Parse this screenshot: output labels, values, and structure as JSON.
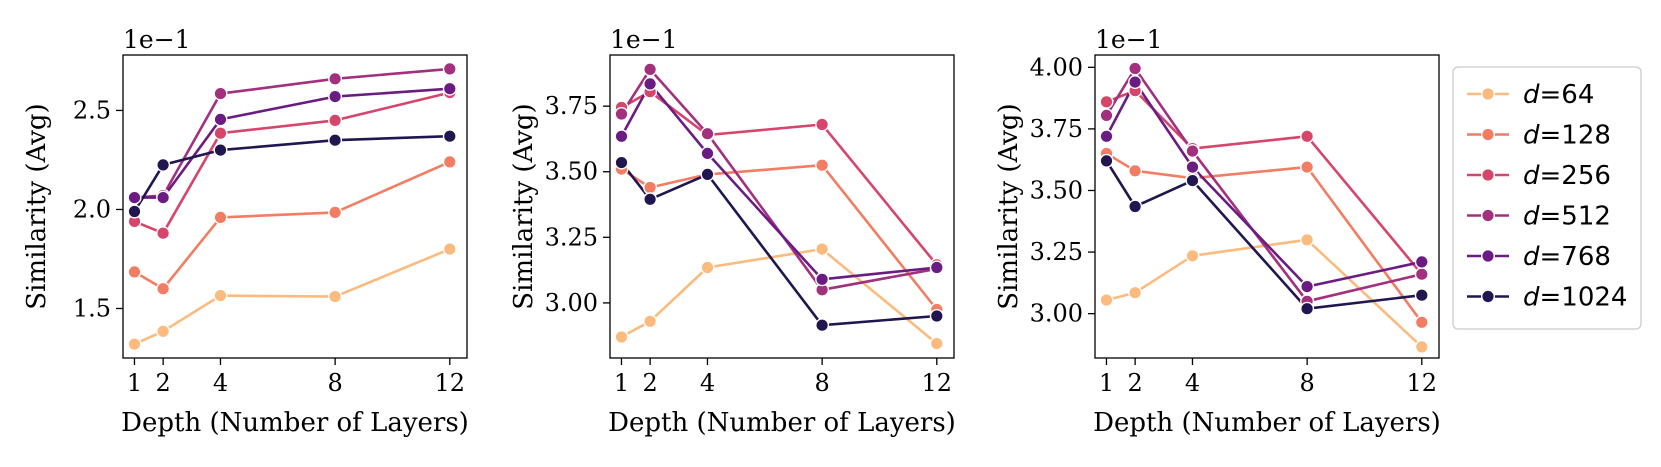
{
  "chart_data": [
    {
      "type": "line",
      "xlabel": "Depth (Number of Layers)",
      "ylabel": "Similarity (Avg)",
      "exponent_label": "1e−1",
      "x": [
        1,
        2,
        4,
        8,
        12
      ],
      "xticks": [
        "1",
        "2",
        "4",
        "8",
        "12"
      ],
      "yticks": [
        "1.5",
        "2.0",
        "2.5"
      ],
      "ytick_values": [
        1.5,
        2.0,
        2.5
      ],
      "ylim": [
        1.25,
        2.78
      ],
      "xlim": [
        0.6,
        12.6
      ],
      "series": [
        {
          "name": "d=64",
          "values": [
            1.32,
            1.385,
            1.565,
            1.56,
            1.8
          ]
        },
        {
          "name": "d=128",
          "values": [
            1.685,
            1.6,
            1.96,
            1.985,
            2.24
          ]
        },
        {
          "name": "d=256",
          "values": [
            1.94,
            1.88,
            2.385,
            2.45,
            2.59
          ]
        },
        {
          "name": "d=512",
          "values": [
            2.06,
            2.07,
            2.585,
            2.66,
            2.71
          ]
        },
        {
          "name": "d=768",
          "values": [
            2.06,
            2.06,
            2.455,
            2.57,
            2.61
          ]
        },
        {
          "name": "d=1024",
          "values": [
            1.99,
            2.225,
            2.3,
            2.35,
            2.37
          ]
        }
      ]
    },
    {
      "type": "line",
      "xlabel": "Depth (Number of Layers)",
      "ylabel": "Similarity (Avg)",
      "exponent_label": "1e−1",
      "x": [
        1,
        2,
        4,
        8,
        12
      ],
      "xticks": [
        "1",
        "2",
        "4",
        "8",
        "12"
      ],
      "yticks": [
        "3.00",
        "3.25",
        "3.50",
        "3.75"
      ],
      "ytick_values": [
        3.0,
        3.25,
        3.5,
        3.75
      ],
      "ylim": [
        2.79,
        3.945
      ],
      "xlim": [
        0.6,
        12.6
      ],
      "series": [
        {
          "name": "d=64",
          "values": [
            2.87,
            2.93,
            3.135,
            3.205,
            2.845
          ]
        },
        {
          "name": "d=128",
          "values": [
            3.51,
            3.44,
            3.49,
            3.525,
            2.975
          ]
        },
        {
          "name": "d=256",
          "values": [
            3.745,
            3.805,
            3.64,
            3.68,
            3.145
          ]
        },
        {
          "name": "d=512",
          "values": [
            3.72,
            3.89,
            3.645,
            3.05,
            3.13
          ]
        },
        {
          "name": "d=768",
          "values": [
            3.635,
            3.835,
            3.57,
            3.09,
            3.135
          ]
        },
        {
          "name": "d=1024",
          "values": [
            3.535,
            3.395,
            3.49,
            2.915,
            2.95
          ]
        }
      ]
    },
    {
      "type": "line",
      "xlabel": "Depth (Number of Layers)",
      "ylabel": "Similarity (Avg)",
      "exponent_label": "1e−1",
      "x": [
        1,
        2,
        4,
        8,
        12
      ],
      "xticks": [
        "1",
        "2",
        "4",
        "8",
        "12"
      ],
      "yticks": [
        "3.00",
        "3.25",
        "3.50",
        "3.75",
        "4.00"
      ],
      "ytick_values": [
        3.0,
        3.25,
        3.5,
        3.75,
        4.0
      ],
      "ylim": [
        2.82,
        4.05
      ],
      "xlim": [
        0.6,
        12.6
      ],
      "series": [
        {
          "name": "d=64",
          "values": [
            3.055,
            3.085,
            3.235,
            3.3,
            2.865
          ]
        },
        {
          "name": "d=128",
          "values": [
            3.65,
            3.58,
            3.55,
            3.595,
            2.965
          ]
        },
        {
          "name": "d=256",
          "values": [
            3.86,
            3.905,
            3.67,
            3.72,
            3.16
          ]
        },
        {
          "name": "d=512",
          "values": [
            3.805,
            3.995,
            3.66,
            3.05,
            3.16
          ]
        },
        {
          "name": "d=768",
          "values": [
            3.72,
            3.94,
            3.595,
            3.11,
            3.21
          ]
        },
        {
          "name": "d=1024",
          "values": [
            3.62,
            3.435,
            3.54,
            3.02,
            3.075
          ]
        }
      ]
    }
  ],
  "legend": {
    "placement": "right",
    "items": [
      {
        "prefix": "d",
        "suffix": "=64",
        "color": "#FCBB7E"
      },
      {
        "prefix": "d",
        "suffix": "=128",
        "color": "#F27D62"
      },
      {
        "prefix": "d",
        "suffix": "=256",
        "color": "#D6456C"
      },
      {
        "prefix": "d",
        "suffix": "=512",
        "color": "#A3307E"
      },
      {
        "prefix": "d",
        "suffix": "=768",
        "color": "#6A1C82"
      },
      {
        "prefix": "d",
        "suffix": "=1024",
        "color": "#221650"
      }
    ]
  }
}
